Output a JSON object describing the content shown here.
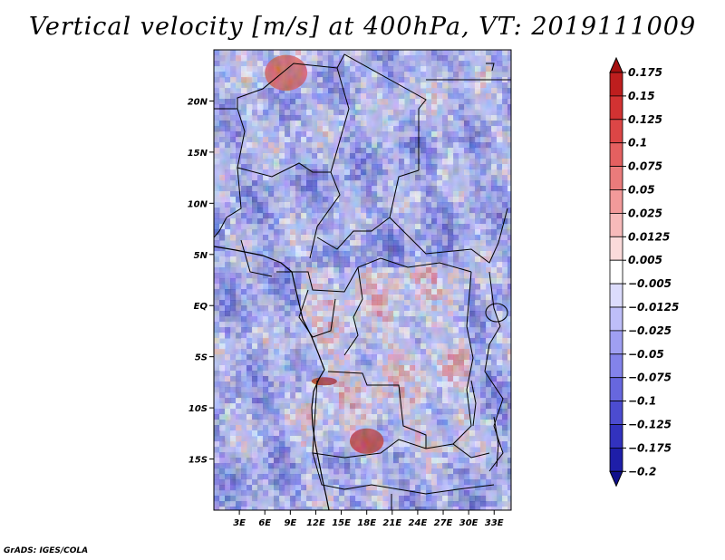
{
  "title": "Vertical velocity [m/s] at 400hPa, VT: 2019111009",
  "credit": "GrADS: IGES/COLA",
  "chart_data": {
    "type": "heatmap",
    "variable": "Vertical velocity",
    "units": "m/s",
    "level": "400hPa",
    "valid_time": "2019111009",
    "xlim": [
      0,
      35
    ],
    "ylim": [
      -20,
      25
    ],
    "x_ticks": [
      {
        "value": 3,
        "label": "3E"
      },
      {
        "value": 6,
        "label": "6E"
      },
      {
        "value": 9,
        "label": "9E"
      },
      {
        "value": 12,
        "label": "12E"
      },
      {
        "value": 15,
        "label": "15E"
      },
      {
        "value": 18,
        "label": "18E"
      },
      {
        "value": 21,
        "label": "21E"
      },
      {
        "value": 24,
        "label": "24E"
      },
      {
        "value": 27,
        "label": "27E"
      },
      {
        "value": 30,
        "label": "30E"
      },
      {
        "value": 33,
        "label": "33E"
      }
    ],
    "y_ticks": [
      {
        "value": 20,
        "label": "20N"
      },
      {
        "value": 15,
        "label": "15N"
      },
      {
        "value": 10,
        "label": "10N"
      },
      {
        "value": 5,
        "label": "5N"
      },
      {
        "value": 0,
        "label": "EQ"
      },
      {
        "value": -5,
        "label": "5S"
      },
      {
        "value": -10,
        "label": "10S"
      },
      {
        "value": -15,
        "label": "15S"
      }
    ],
    "colorbar": {
      "levels": [
        "0.175",
        "0.15",
        "0.125",
        "0.1",
        "0.075",
        "0.05",
        "0.025",
        "0.0125",
        "0.005",
        "-0.005",
        "-0.0125",
        "-0.025",
        "-0.05",
        "-0.075",
        "-0.1",
        "-0.125",
        "-0.175",
        "-0.2"
      ],
      "colors": [
        "#a50f0f",
        "#be1e1e",
        "#d23232",
        "#dc4646",
        "#e46060",
        "#ea7b7b",
        "#f29a9a",
        "#f7baba",
        "#fbdada",
        "#ffffff",
        "#dcdcfc",
        "#bebef8",
        "#9f9ff2",
        "#8383ea",
        "#6767de",
        "#4c4cd0",
        "#3232be",
        "#1e1ea8",
        "#0f0f8c"
      ]
    },
    "highlights": [
      {
        "name": "strong ascent band",
        "lon": [
          11.5,
          14.5
        ],
        "lat": [
          -7.0,
          -7.8
        ],
        "value": 0.175
      },
      {
        "name": "strong ascent patch",
        "lon": [
          16.0,
          20.0
        ],
        "lat": [
          -12.0,
          -14.5
        ],
        "value": 0.15
      },
      {
        "name": "northern ascent streak",
        "lon": [
          6.0,
          11.0
        ],
        "lat": [
          21.0,
          24.5
        ],
        "value": 0.1
      }
    ]
  }
}
